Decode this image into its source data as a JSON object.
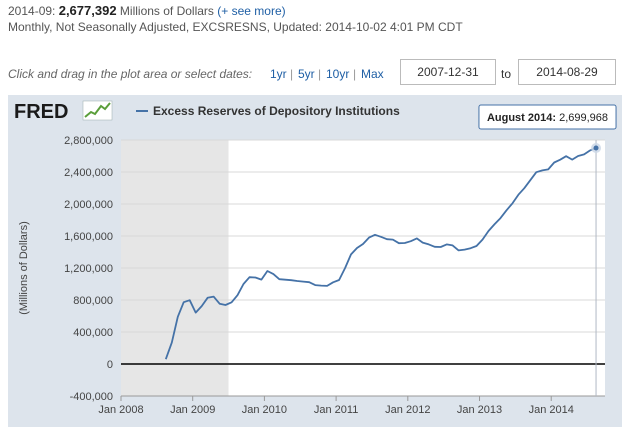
{
  "header": {
    "latest_date": "2014-09:",
    "latest_value": "2,677,392",
    "latest_units": "Millions of Dollars",
    "see_more": "(+ see more)",
    "meta": "Monthly, Not Seasonally Adjusted, EXCSRESNS, Updated: 2014-10-02 4:01 PM CDT"
  },
  "controls": {
    "hint": "Click and drag in the plot area or select dates:",
    "ranges": [
      "1yr",
      "5yr",
      "10yr",
      "Max"
    ],
    "start_date": "2007-12-31",
    "to_label": "to",
    "end_date": "2014-08-29"
  },
  "logo": {
    "text": "FRED"
  },
  "tooltip": {
    "label": "August 2014:",
    "value": "2,699,968"
  },
  "colors": {
    "line": "#4572a7",
    "panel": "#dde4ec",
    "plot_bg": "#ffffff",
    "recession": "#e6e6e6",
    "brand": "#1a1a1a"
  },
  "chart_data": {
    "type": "line",
    "title": "",
    "xlabel": "",
    "ylabel": "(Millions of Dollars)",
    "xlim": [
      2008.0,
      2014.75
    ],
    "ylim": [
      -400000,
      2800000
    ],
    "ytick_values": [
      -400000,
      0,
      400000,
      800000,
      1200000,
      1600000,
      2000000,
      2400000,
      2800000
    ],
    "ytick_labels": [
      "-400,000",
      "0",
      "400,000",
      "800,000",
      "1,200,000",
      "1,600,000",
      "2,000,000",
      "2,400,000",
      "2,800,000"
    ],
    "xtick_values": [
      2008,
      2009,
      2010,
      2011,
      2012,
      2013,
      2014
    ],
    "xtick_labels": [
      "Jan 2008",
      "Jan 2009",
      "Jan 2010",
      "Jan 2011",
      "Jan 2012",
      "Jan 2013",
      "Jan 2014"
    ],
    "recession": [
      2008.0,
      2009.5
    ],
    "grid": true,
    "legend": "top-left",
    "series": [
      {
        "name": "Excess Reserves of Depository Institutions",
        "x": [
          2008.625,
          2008.708,
          2008.792,
          2008.875,
          2008.958,
          2009.042,
          2009.125,
          2009.208,
          2009.292,
          2009.375,
          2009.458,
          2009.542,
          2009.625,
          2009.708,
          2009.792,
          2009.875,
          2009.958,
          2010.042,
          2010.125,
          2010.208,
          2010.292,
          2010.375,
          2010.458,
          2010.542,
          2010.625,
          2010.708,
          2010.792,
          2010.875,
          2010.958,
          2011.042,
          2011.125,
          2011.208,
          2011.292,
          2011.375,
          2011.458,
          2011.542,
          2011.625,
          2011.708,
          2011.792,
          2011.875,
          2011.958,
          2012.042,
          2012.125,
          2012.208,
          2012.292,
          2012.375,
          2012.458,
          2012.542,
          2012.625,
          2012.708,
          2012.792,
          2012.875,
          2012.958,
          2013.042,
          2013.125,
          2013.208,
          2013.292,
          2013.375,
          2013.458,
          2013.542,
          2013.625,
          2013.708,
          2013.792,
          2013.875,
          2013.958,
          2014.042,
          2014.125,
          2014.208,
          2014.292,
          2014.375,
          2014.458,
          2014.542,
          2014.625
        ],
        "values": [
          60000,
          267000,
          590000,
          772000,
          798000,
          642000,
          724000,
          827000,
          843000,
          754000,
          737000,
          771000,
          860000,
          1000000,
          1085000,
          1081000,
          1055000,
          1163000,
          1124000,
          1060000,
          1054000,
          1047000,
          1038000,
          1030000,
          1022000,
          986000,
          980000,
          976000,
          1021000,
          1050000,
          1200000,
          1370000,
          1450000,
          1500000,
          1580000,
          1615000,
          1590000,
          1560000,
          1555000,
          1510000,
          1512000,
          1535000,
          1570000,
          1518000,
          1495000,
          1465000,
          1462000,
          1495000,
          1483000,
          1420000,
          1430000,
          1447000,
          1475000,
          1555000,
          1662000,
          1745000,
          1824000,
          1920000,
          2007000,
          2116000,
          2198000,
          2298000,
          2398000,
          2420000,
          2432000,
          2519000,
          2554000,
          2598000,
          2555000,
          2600000,
          2620000,
          2670000,
          2699968
        ]
      }
    ]
  }
}
